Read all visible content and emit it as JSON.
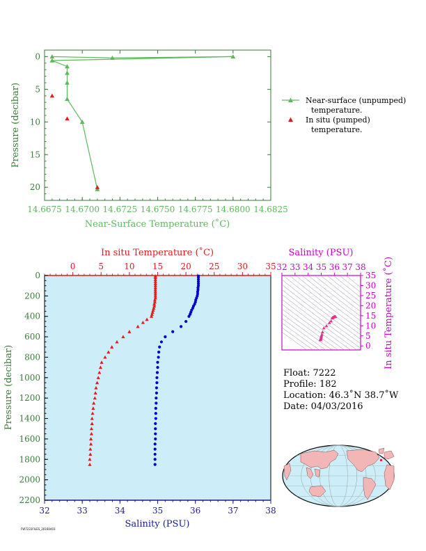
{
  "colors": {
    "green": "#5cb85c",
    "green_dark": "#3a7a3a",
    "red": "#e41a1c",
    "blue": "#0000d0",
    "navy": "#1a1a8c",
    "magenta": "#cc00cc",
    "plot_bg": "#cdeef8",
    "land": "#f2b6b6",
    "ocean": "#cdeef8"
  },
  "chart_data": [
    {
      "id": "near-surface-chart",
      "type": "line",
      "xlabel": "Near-Surface Temperature (˚C)",
      "ylabel": "Pressure (decibar)",
      "xlim": [
        14.6675,
        14.6825
      ],
      "ylim": [
        22,
        -1
      ],
      "xticks": [
        "14.6675",
        "14.6700",
        "14.6725",
        "14.6750",
        "14.6775",
        "14.6800",
        "14.6825"
      ],
      "yticks": [
        "0",
        "5",
        "10",
        "15",
        "20"
      ],
      "series": [
        {
          "name": "Near-surface (unpumped) temperature.",
          "marker": "triangle",
          "line": true,
          "x": [
            14.668,
            14.672,
            14.68,
            14.668,
            14.669,
            14.669,
            14.669,
            14.669,
            14.67,
            14.671
          ],
          "y": [
            0.0,
            0.2,
            0.0,
            0.6,
            1.5,
            2.5,
            4.0,
            6.5,
            10.0,
            20.3
          ]
        },
        {
          "name": "In situ (pumped) temperature.",
          "marker": "triangle",
          "line": false,
          "x": [
            14.668,
            14.669,
            14.671
          ],
          "y": [
            6.0,
            9.5,
            20.0
          ]
        }
      ],
      "legend": {
        "placement": "right",
        "entries": [
          {
            "line1": "Near-surface (unpumped)",
            "line2": "temperature."
          },
          {
            "line1": "In situ (pumped)",
            "line2": "temperature."
          }
        ]
      }
    },
    {
      "id": "profile-chart",
      "type": "scatter",
      "top_xlabel": "In situ Temperature (˚C)",
      "bottom_xlabel": "Salinity (PSU)",
      "ylabel": "Pressure (decibar)",
      "temp_xlim": [
        -5,
        35
      ],
      "sal_xlim": [
        32,
        38
      ],
      "ylim": [
        2200,
        0
      ],
      "temp_ticks": [
        "0",
        "5",
        "10",
        "15",
        "20",
        "25",
        "30",
        "35"
      ],
      "sal_ticks": [
        "32",
        "33",
        "34",
        "35",
        "36",
        "37",
        "38"
      ],
      "yticks": [
        "0",
        "200",
        "400",
        "600",
        "800",
        "1000",
        "1200",
        "1400",
        "1600",
        "1800",
        "2000",
        "2200"
      ],
      "temperature": {
        "pressure": [
          5,
          20,
          40,
          60,
          80,
          100,
          120,
          140,
          160,
          180,
          200,
          220,
          240,
          260,
          280,
          300,
          320,
          340,
          360,
          380,
          400,
          430,
          460,
          500,
          550,
          600,
          650,
          700,
          750,
          800,
          850,
          900,
          950,
          1000,
          1050,
          1100,
          1150,
          1200,
          1250,
          1300,
          1350,
          1400,
          1450,
          1500,
          1550,
          1600,
          1650,
          1700,
          1750,
          1800,
          1850
        ],
        "temperature": [
          14.6,
          14.6,
          14.6,
          14.6,
          14.6,
          14.6,
          14.6,
          14.6,
          14.6,
          14.6,
          14.6,
          14.6,
          14.5,
          14.5,
          14.4,
          14.4,
          14.3,
          14.2,
          14.1,
          14.0,
          13.9,
          13.1,
          12.4,
          11.5,
          10.0,
          8.9,
          7.8,
          6.9,
          6.3,
          5.7,
          5.1,
          4.9,
          4.7,
          4.5,
          4.3,
          4.1,
          4.0,
          3.9,
          3.7,
          3.6,
          3.5,
          3.4,
          3.4,
          3.3,
          3.3,
          3.2,
          3.2,
          3.1,
          3.1,
          3.0,
          3.0
        ]
      },
      "salinity": {
        "pressure": [
          5,
          20,
          40,
          60,
          80,
          100,
          120,
          140,
          160,
          180,
          200,
          220,
          240,
          260,
          280,
          300,
          320,
          340,
          360,
          380,
          400,
          450,
          500,
          550,
          600,
          650,
          700,
          750,
          800,
          850,
          900,
          950,
          1000,
          1050,
          1100,
          1150,
          1200,
          1250,
          1300,
          1350,
          1400,
          1450,
          1500,
          1550,
          1600,
          1650,
          1700,
          1750,
          1800,
          1850
        ],
        "salinity": [
          36.08,
          36.08,
          36.08,
          36.08,
          36.08,
          36.08,
          36.07,
          36.07,
          36.06,
          36.06,
          36.05,
          36.03,
          36.01,
          36.0,
          35.98,
          35.95,
          35.93,
          35.9,
          35.88,
          35.86,
          35.83,
          35.75,
          35.62,
          35.4,
          35.2,
          35.1,
          35.05,
          35.03,
          35.02,
          35.0,
          35.0,
          34.99,
          34.98,
          34.98,
          34.97,
          34.97,
          34.96,
          34.96,
          34.95,
          34.95,
          34.95,
          34.94,
          34.94,
          34.94,
          34.94,
          34.93,
          34.93,
          34.93,
          34.93,
          34.93
        ]
      }
    },
    {
      "id": "ts-chart",
      "type": "scatter",
      "top_xlabel": "Salinity (PSU)",
      "ylabel": "In situ Temperature (˚C)",
      "xlim": [
        32,
        38
      ],
      "ylim": [
        -2,
        35
      ],
      "xticks": [
        "32",
        "33",
        "34",
        "35",
        "36",
        "37",
        "38"
      ],
      "yticks": [
        "0",
        "5",
        "10",
        "15",
        "20",
        "25",
        "30",
        "35"
      ],
      "salinity": [
        34.93,
        34.94,
        34.95,
        34.96,
        34.98,
        35.0,
        35.02,
        35.05,
        35.1,
        35.2,
        35.4,
        35.62,
        35.75,
        35.83,
        35.86,
        35.9,
        35.95,
        36.0,
        36.03,
        36.05,
        36.08
      ],
      "temperature": [
        3.0,
        3.2,
        3.4,
        3.6,
        4.0,
        4.5,
        5.1,
        5.7,
        6.9,
        8.9,
        10.0,
        11.5,
        12.4,
        13.9,
        14.0,
        14.2,
        14.4,
        14.5,
        14.6,
        14.6,
        14.6
      ]
    }
  ],
  "float_info": {
    "float": "Float:  7222",
    "profile": "Profile:  182",
    "location": "Location:  46.3˚N  38.7˚W",
    "date": "Date:  04/03/2016"
  },
  "map": {
    "marker_lat": 46.3,
    "marker_lon": -38.7
  },
  "footer_stamp": "FW7222FILES_20160403"
}
